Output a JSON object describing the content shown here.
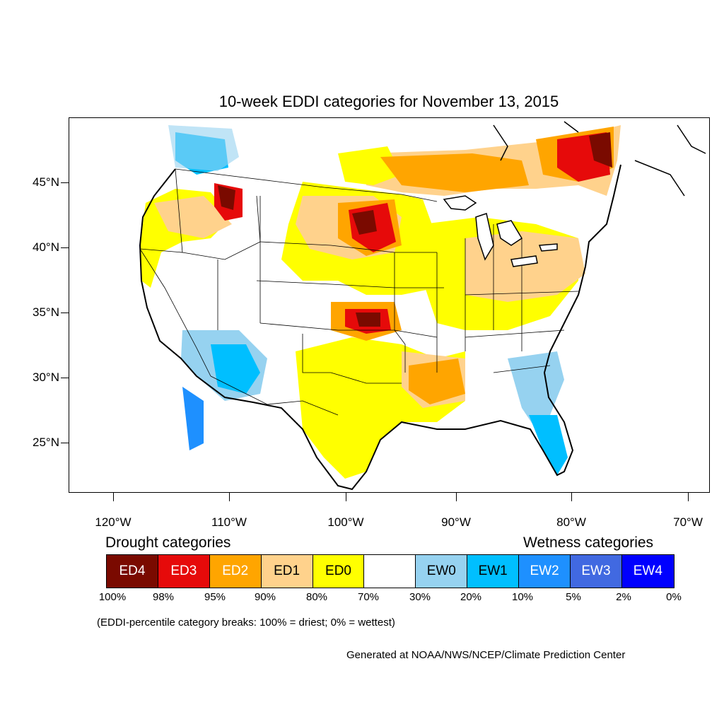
{
  "title": "10-week EDDI categories for November 13, 2015",
  "map": {
    "lat_labels": [
      "45°N",
      "40°N",
      "35°N",
      "30°N",
      "25°N"
    ],
    "lon_labels": [
      "120°W",
      "110°W",
      "100°W",
      "90°W",
      "80°W",
      "70°W"
    ]
  },
  "legend": {
    "drought_heading": "Drought categories",
    "wetness_heading": "Wetness categories",
    "categories": [
      {
        "label": "ED4",
        "color": "#7a0a00",
        "text_color": "#ffffff"
      },
      {
        "label": "ED3",
        "color": "#e60a0a",
        "text_color": "#ffffff"
      },
      {
        "label": "ED2",
        "color": "#ffa500",
        "text_color": "#ffffff"
      },
      {
        "label": "ED1",
        "color": "#ffd28c",
        "text_color": "#000000"
      },
      {
        "label": "ED0",
        "color": "#ffff00",
        "text_color": "#000000"
      },
      {
        "label": "",
        "color": "#ffffff",
        "text_color": "#000000"
      },
      {
        "label": "EW0",
        "color": "#96d2f0",
        "text_color": "#000000"
      },
      {
        "label": "EW1",
        "color": "#00bfff",
        "text_color": "#000000"
      },
      {
        "label": "EW2",
        "color": "#1e90ff",
        "text_color": "#ffffff"
      },
      {
        "label": "EW3",
        "color": "#4169e1",
        "text_color": "#ffffff"
      },
      {
        "label": "EW4",
        "color": "#0000ff",
        "text_color": "#ffffff"
      }
    ],
    "breaks": [
      "100%",
      "98%",
      "95%",
      "90%",
      "80%",
      "70%",
      "30%",
      "20%",
      "10%",
      "5%",
      "2%",
      "0%"
    ]
  },
  "note": "(EDDI-percentile category breaks: 100% = driest; 0% = wettest)",
  "credit": "Generated at NOAA/NWS/NCEP/Climate Prediction Center"
}
